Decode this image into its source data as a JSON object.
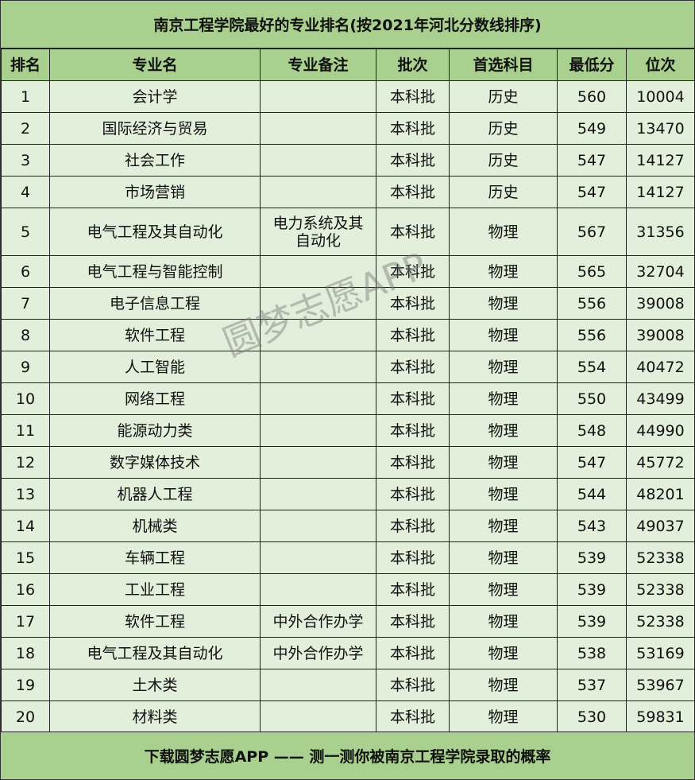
{
  "title": "南京工程学院最好的专业排名(按2021年河北分数线排序)",
  "headers": [
    "排名",
    "专业名",
    "专业备注",
    "批次",
    "首选科目",
    "最低分",
    "位次"
  ],
  "rows": [
    [
      "1",
      "会计学",
      "",
      "本科批",
      "历史",
      "560",
      "10004"
    ],
    [
      "2",
      "国际经济与贸易",
      "",
      "本科批",
      "历史",
      "549",
      "13470"
    ],
    [
      "3",
      "社会工作",
      "",
      "本科批",
      "历史",
      "547",
      "14127"
    ],
    [
      "4",
      "市场营销",
      "",
      "本科批",
      "历史",
      "547",
      "14127"
    ],
    [
      "5",
      "电气工程及其自动化",
      "电力系统及其自动化",
      "本科批",
      "物理",
      "567",
      "31356"
    ],
    [
      "6",
      "电气工程与智能控制",
      "",
      "本科批",
      "物理",
      "565",
      "32704"
    ],
    [
      "7",
      "电子信息工程",
      "",
      "本科批",
      "物理",
      "556",
      "39008"
    ],
    [
      "8",
      "软件工程",
      "",
      "本科批",
      "物理",
      "556",
      "39008"
    ],
    [
      "9",
      "人工智能",
      "",
      "本科批",
      "物理",
      "554",
      "40472"
    ],
    [
      "10",
      "网络工程",
      "",
      "本科批",
      "物理",
      "550",
      "43499"
    ],
    [
      "11",
      "能源动力类",
      "",
      "本科批",
      "物理",
      "548",
      "44990"
    ],
    [
      "12",
      "数字媒体技术",
      "",
      "本科批",
      "物理",
      "547",
      "45772"
    ],
    [
      "13",
      "机器人工程",
      "",
      "本科批",
      "物理",
      "544",
      "48201"
    ],
    [
      "14",
      "机械类",
      "",
      "本科批",
      "物理",
      "543",
      "49037"
    ],
    [
      "15",
      "车辆工程",
      "",
      "本科批",
      "物理",
      "539",
      "52338"
    ],
    [
      "16",
      "工业工程",
      "",
      "本科批",
      "物理",
      "539",
      "52338"
    ],
    [
      "17",
      "软件工程",
      "中外合作办学",
      "本科批",
      "物理",
      "539",
      "52338"
    ],
    [
      "18",
      "电气工程及其自动化",
      "中外合作办学",
      "本科批",
      "物理",
      "538",
      "53169"
    ],
    [
      "19",
      "土木类",
      "",
      "本科批",
      "物理",
      "537",
      "53967"
    ],
    [
      "20",
      "材料类",
      "",
      "本科批",
      "物理",
      "530",
      "59831"
    ]
  ],
  "footer": "下载圆梦志愿APP —— 测一测你被南京工程学院录取的概率",
  "watermark": "圆梦志愿APP",
  "colors": {
    "header_bg": "#a9d08e",
    "row_bg": "#e2efda"
  }
}
